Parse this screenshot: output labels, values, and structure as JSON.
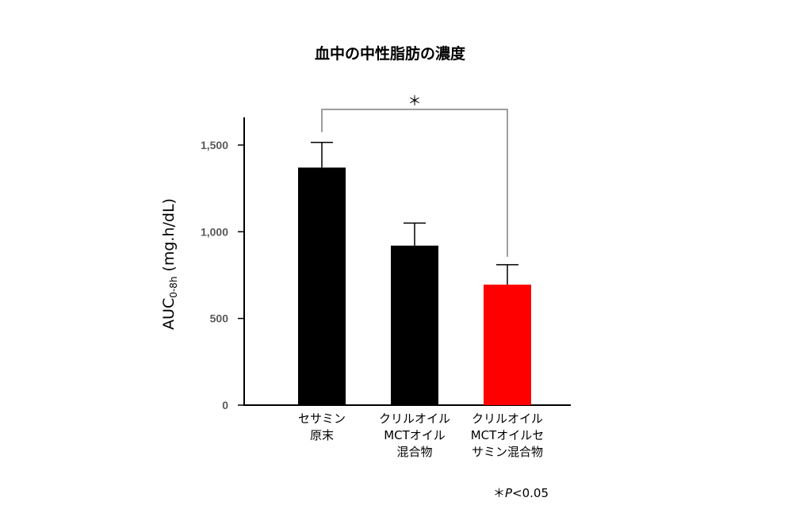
{
  "chart_data": {
    "type": "bar",
    "title": "血中の中性脂肪の濃度",
    "ylabel": {
      "main": "AUC",
      "sub": "0-8h",
      "unit": "(mg.h/dL)"
    },
    "ylim": [
      0,
      1650
    ],
    "yticks": [
      {
        "value": 0,
        "label": "0"
      },
      {
        "value": 500,
        "label": "500"
      },
      {
        "value": 1000,
        "label": "1,000"
      },
      {
        "value": 1500,
        "label": "1,500"
      }
    ],
    "categories": [
      [
        "セサミン",
        "原末"
      ],
      [
        "クリルオイル",
        "MCTオイル",
        "混合物"
      ],
      [
        "クリルオイル",
        "MCTオイルセ",
        "サミン混合物"
      ]
    ],
    "values": [
      1370,
      920,
      695
    ],
    "errors": [
      145,
      130,
      115
    ],
    "colors": [
      "#000000",
      "#000000",
      "#ff0000"
    ],
    "significance": {
      "from": 0,
      "to": 2,
      "label": "＊"
    },
    "grid": false,
    "legend": "none"
  },
  "note": {
    "prefix": "＊",
    "p": "P",
    "rest": "<0.05"
  }
}
